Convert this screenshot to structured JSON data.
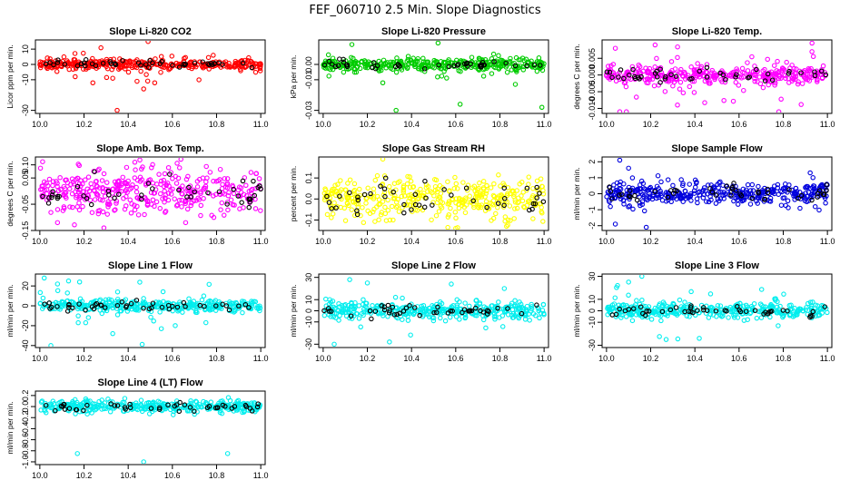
{
  "figure_title": "FEF_060710  2.5 Min. Slope Diagnostics",
  "chart_data": [
    {
      "id": "p1",
      "type": "scatter",
      "title": "Slope Li-820 CO2",
      "ylabel": "Licor ppm per min.",
      "xlim": [
        9.98,
        11.02
      ],
      "ylim": [
        -32,
        16
      ],
      "xticks": [
        10.0,
        10.2,
        10.4,
        10.6,
        10.8,
        11.0
      ],
      "xtick_labels": [
        "10.0",
        "10.2",
        "10.4",
        "10.6",
        "10.8",
        "11.0"
      ],
      "yticks": [
        -30,
        -10,
        0,
        10
      ],
      "ytick_labels": [
        "-30",
        "-10",
        "0",
        "10"
      ],
      "color": "#ff0000",
      "band": 1.5,
      "outlier_spread": 5,
      "outliers": [
        [
          10.35,
          -30
        ],
        [
          10.47,
          -16
        ],
        [
          10.49,
          15
        ],
        [
          10.16,
          -8
        ],
        [
          10.24,
          -12
        ],
        [
          10.44,
          -11
        ],
        [
          10.52,
          -12
        ],
        [
          10.33,
          -9
        ]
      ],
      "n_main": 360,
      "n_black": 45
    },
    {
      "id": "p2",
      "type": "scatter",
      "title": "Slope Li-820 Pressure",
      "ylabel": "kPa per min.",
      "xlim": [
        9.98,
        11.02
      ],
      "ylim": [
        -0.032,
        0.016
      ],
      "xticks": [
        10.0,
        10.2,
        10.4,
        10.6,
        10.8,
        11.0
      ],
      "xtick_labels": [
        "10.0",
        "10.2",
        "10.4",
        "10.6",
        "10.8",
        "11.0"
      ],
      "yticks": [
        -0.03,
        -0.01,
        0.0
      ],
      "ytick_labels": [
        "-0.03",
        "-0.01",
        "0.00"
      ],
      "color": "#00cc00",
      "band": 0.002,
      "outlier_spread": 0.005,
      "outliers": [
        [
          10.33,
          -0.03
        ],
        [
          10.62,
          -0.026
        ],
        [
          10.99,
          -0.028
        ],
        [
          10.13,
          0.013
        ],
        [
          10.52,
          0.014
        ],
        [
          10.27,
          -0.012
        ],
        [
          10.87,
          -0.013
        ]
      ],
      "n_main": 360,
      "n_black": 45
    },
    {
      "id": "p3",
      "type": "scatter",
      "title": "Slope Li-820 Temp.",
      "ylabel": "degrees C per min.",
      "xlim": [
        9.98,
        11.02
      ],
      "ylim": [
        -0.0115,
        0.0105
      ],
      "xticks": [
        10.0,
        10.2,
        10.4,
        10.6,
        10.8,
        11.0
      ],
      "xtick_labels": [
        "10.0",
        "10.2",
        "10.4",
        "10.6",
        "10.8",
        "11.0"
      ],
      "yticks": [
        -0.01,
        -0.005,
        0.0,
        0.005
      ],
      "ytick_labels": [
        "-0.010",
        "-0.005",
        "0.000",
        "0.005"
      ],
      "color": "#ff00ff",
      "band": 0.0012,
      "outlier_spread": 0.004,
      "outliers": [
        [
          10.06,
          -0.011
        ],
        [
          10.09,
          -0.011
        ],
        [
          10.22,
          0.009
        ],
        [
          10.78,
          -0.011
        ],
        [
          10.93,
          0.007
        ],
        [
          10.04,
          0.008
        ]
      ],
      "n_main": 360,
      "n_black": 45
    },
    {
      "id": "p4",
      "type": "scatter",
      "title": "Slope Amb. Box Temp.",
      "ylabel": "degrees C per min.",
      "xlim": [
        9.98,
        11.02
      ],
      "ylim": [
        -0.15,
        0.13
      ],
      "xticks": [
        10.0,
        10.2,
        10.4,
        10.6,
        10.8,
        11.0
      ],
      "xtick_labels": [
        "10.0",
        "10.2",
        "10.4",
        "10.6",
        "10.8",
        "11.0"
      ],
      "yticks": [
        -0.15,
        -0.05,
        0.05,
        0.1
      ],
      "ytick_labels": [
        "-0.15",
        "-0.05",
        "0.05",
        "0.10"
      ],
      "color": "#ff00ff",
      "band": 0.04,
      "outlier_spread": 0.05,
      "outliers": [
        [
          10.43,
          0.11
        ],
        [
          10.29,
          -0.14
        ],
        [
          10.08,
          -0.12
        ],
        [
          10.66,
          -0.12
        ]
      ],
      "n_main": 380,
      "n_black": 45
    },
    {
      "id": "p5",
      "type": "scatter",
      "title": "Slope Gas Stream RH",
      "ylabel": "percent per min.",
      "xlim": [
        9.98,
        11.02
      ],
      "ylim": [
        -0.15,
        0.2
      ],
      "xticks": [
        10.0,
        10.2,
        10.4,
        10.6,
        10.8,
        11.0
      ],
      "xtick_labels": [
        "10.0",
        "10.2",
        "10.4",
        "10.6",
        "10.8",
        "11.0"
      ],
      "yticks": [
        -0.1,
        0.0,
        0.1
      ],
      "ytick_labels": [
        "-0.1",
        "0.0",
        "0.1"
      ],
      "color": "#ffff00",
      "band": 0.05,
      "outlier_spread": 0.06,
      "outliers": [
        [
          10.27,
          0.19
        ],
        [
          10.6,
          -0.14
        ],
        [
          10.83,
          -0.13
        ]
      ],
      "n_main": 380,
      "n_black": 45
    },
    {
      "id": "p6",
      "type": "scatter",
      "title": "Slope Sample Flow",
      "ylabel": "ml/min per min.",
      "xlim": [
        9.98,
        11.02
      ],
      "ylim": [
        -2.3,
        2.3
      ],
      "xticks": [
        10.0,
        10.2,
        10.4,
        10.6,
        10.8,
        11.0
      ],
      "xtick_labels": [
        "10.0",
        "10.2",
        "10.4",
        "10.6",
        "10.8",
        "11.0"
      ],
      "yticks": [
        -2,
        -1,
        0,
        1,
        2
      ],
      "ytick_labels": [
        "-2",
        "-1",
        "0",
        "1",
        "2"
      ],
      "color": "#0000dd",
      "band": 0.35,
      "outlier_spread": 0.6,
      "outliers": [
        [
          10.06,
          2.1
        ],
        [
          10.18,
          -2.1
        ],
        [
          10.04,
          -1.9
        ],
        [
          10.1,
          1.6
        ]
      ],
      "n_main": 380,
      "n_black": 45
    },
    {
      "id": "p7",
      "type": "scatter",
      "title": "Slope Line 1 Flow",
      "ylabel": "ml/min per min.",
      "xlim": [
        9.98,
        11.02
      ],
      "ylim": [
        -42,
        32
      ],
      "xticks": [
        10.0,
        10.2,
        10.4,
        10.6,
        10.8,
        11.0
      ],
      "xtick_labels": [
        "10.0",
        "10.2",
        "10.4",
        "10.6",
        "10.8",
        "11.0"
      ],
      "yticks": [
        -40,
        -20,
        0,
        20
      ],
      "ytick_labels": [
        "-40",
        "-20",
        "0",
        "20"
      ],
      "color": "#00eeee",
      "band": 3,
      "outlier_spread": 10,
      "outliers": [
        [
          10.05,
          -40
        ],
        [
          10.33,
          -28
        ],
        [
          10.55,
          -23
        ],
        [
          10.02,
          28
        ],
        [
          10.13,
          25
        ],
        [
          10.18,
          24
        ],
        [
          10.08,
          22
        ]
      ],
      "n_main": 340,
      "n_black": 45
    },
    {
      "id": "p8",
      "type": "scatter",
      "title": "Slope Line 2 Flow",
      "ylabel": "ml/min per min.",
      "xlim": [
        9.98,
        11.02
      ],
      "ylim": [
        -33,
        33
      ],
      "xticks": [
        10.0,
        10.2,
        10.4,
        10.6,
        10.8,
        11.0
      ],
      "xtick_labels": [
        "10.0",
        "10.2",
        "10.4",
        "10.6",
        "10.8",
        "11.0"
      ],
      "yticks": [
        -30,
        -10,
        0,
        10,
        30
      ],
      "ytick_labels": [
        "-30",
        "-10",
        "0",
        "10",
        "30"
      ],
      "color": "#00eeee",
      "band": 3.5,
      "outlier_spread": 10,
      "outliers": [
        [
          10.12,
          28
        ],
        [
          10.2,
          25
        ],
        [
          10.05,
          -30
        ],
        [
          10.58,
          24
        ],
        [
          10.3,
          -28
        ],
        [
          10.82,
          20
        ]
      ],
      "n_main": 360,
      "n_black": 45
    },
    {
      "id": "p9",
      "type": "scatter",
      "title": "Slope Line 3 Flow",
      "ylabel": "ml/min per min.",
      "xlim": [
        9.98,
        11.02
      ],
      "ylim": [
        -32,
        32
      ],
      "xticks": [
        10.0,
        10.2,
        10.4,
        10.6,
        10.8,
        11.0
      ],
      "xtick_labels": [
        "10.0",
        "10.2",
        "10.4",
        "10.6",
        "10.8",
        "11.0"
      ],
      "yticks": [
        -30,
        -10,
        0,
        10,
        30
      ],
      "ytick_labels": [
        "-30",
        "-10",
        "0",
        "10",
        "30"
      ],
      "color": "#00eeee",
      "band": 3.5,
      "outlier_spread": 9,
      "outliers": [
        [
          10.16,
          30
        ],
        [
          10.1,
          25
        ],
        [
          10.27,
          -25
        ],
        [
          10.05,
          22
        ],
        [
          10.42,
          -24
        ]
      ],
      "n_main": 360,
      "n_black": 45
    },
    {
      "id": "p10",
      "type": "scatter",
      "title": "Slope Line 4 (LT) Flow",
      "ylabel": "ml/min per min.",
      "xlim": [
        9.98,
        11.02
      ],
      "ylim": [
        -1.05,
        0.28
      ],
      "xticks": [
        10.0,
        10.2,
        10.4,
        10.6,
        10.8,
        11.0
      ],
      "xtick_labels": [
        "10.0",
        "10.2",
        "10.4",
        "10.6",
        "10.8",
        "11.0"
      ],
      "yticks": [
        -1.0,
        -0.8,
        -0.6,
        -0.4,
        -0.2,
        0.0,
        0.2
      ],
      "ytick_labels": [
        "-1.0",
        "-0.8",
        "-0.6",
        "-0.4",
        "-0.2",
        "0.0",
        "0.2"
      ],
      "color": "#00eeee",
      "band": 0.05,
      "outlier_spread": 0.08,
      "outliers": [
        [
          10.17,
          -0.85
        ],
        [
          10.85,
          -0.85
        ],
        [
          10.47,
          -1.0
        ]
      ],
      "n_main": 360,
      "n_black": 45
    }
  ]
}
